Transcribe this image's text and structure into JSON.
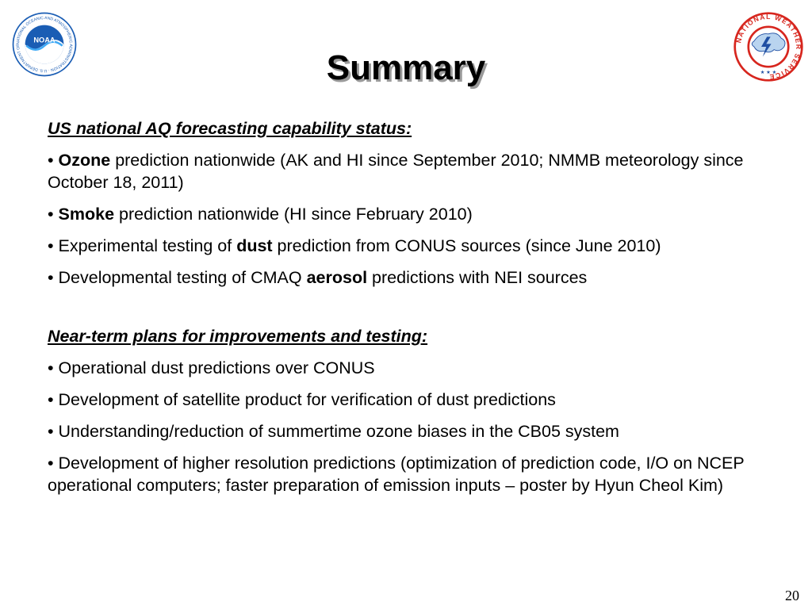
{
  "slide": {
    "title": "Summary",
    "page_number": "20",
    "logos": {
      "noaa_icon": "noaa-seal-icon",
      "noaa_text": "NOAA",
      "noaa_ring_text": "NATIONAL OCEANIC AND ATMOSPHERIC ADMINISTRATION · U.S. DEPARTMENT OF COMMERCE",
      "nws_icon": "national-weather-service-icon",
      "nws_ring_text": "NATIONAL WEATHER SERVICE"
    }
  },
  "sections": [
    {
      "heading": "US national AQ forecasting capability status:",
      "items": [
        {
          "bullet": "•",
          "pre": " ",
          "bold": "Ozone",
          "post": " prediction nationwide (AK and HI since September 2010; NMMB meteorology since October 18, 2011)"
        },
        {
          "bullet": "•",
          "pre": " ",
          "bold": "Smoke",
          "post": " prediction nationwide (HI since February 2010)"
        },
        {
          "bullet": "•",
          "pre": " Experimental testing of ",
          "bold": "dust",
          "post": " prediction from CONUS sources (since June 2010)"
        },
        {
          "bullet": "•",
          "pre": " Developmental testing of CMAQ ",
          "bold": "aerosol",
          "post": " predictions with NEI sources"
        }
      ]
    },
    {
      "heading": "Near-term plans for improvements and testing:",
      "items": [
        {
          "bullet": "•",
          "text": " Operational dust predictions over CONUS"
        },
        {
          "bullet": "•",
          "text": " Development of satellite product for verification of dust predictions"
        },
        {
          "bullet": "•",
          "text": " Understanding/reduction of summertime ozone biases in the CB05 system"
        },
        {
          "bullet": "•",
          "text": " Development of higher resolution predictions (optimization of prediction code, I/O on NCEP operational computers; faster preparation of emission inputs – poster by Hyun Cheol Kim)"
        }
      ]
    }
  ],
  "colors": {
    "noaa_blue": "#1a5db4",
    "noaa_light": "#3fa9f5",
    "nws_red": "#d7261e",
    "nws_blue": "#1f4fa3",
    "title_shadow": "#9a9a9a"
  }
}
